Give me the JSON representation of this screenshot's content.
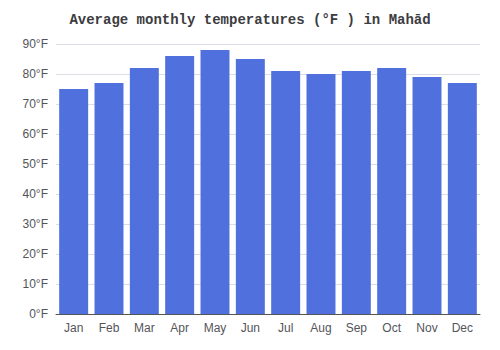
{
  "chart_data": {
    "type": "bar",
    "title": "Average monthly temperatures (°F ) in Mahād",
    "categories": [
      "Jan",
      "Feb",
      "Mar",
      "Apr",
      "May",
      "Jun",
      "Jul",
      "Aug",
      "Sep",
      "Oct",
      "Nov",
      "Dec"
    ],
    "values": [
      75,
      77,
      82,
      86,
      88,
      85,
      81,
      80,
      81,
      82,
      79,
      77
    ],
    "ylim": [
      0,
      90
    ],
    "yticks": [
      {
        "value": 0,
        "label": "0°F"
      },
      {
        "value": 10,
        "label": "10°F"
      },
      {
        "value": 20,
        "label": "20°F"
      },
      {
        "value": 30,
        "label": "30°F"
      },
      {
        "value": 40,
        "label": "40°F"
      },
      {
        "value": 50,
        "label": "50°F"
      },
      {
        "value": 60,
        "label": "60°F"
      },
      {
        "value": 70,
        "label": "70°F"
      },
      {
        "value": 80,
        "label": "80°F"
      },
      {
        "value": 90,
        "label": "90°F"
      }
    ],
    "grid": true
  }
}
